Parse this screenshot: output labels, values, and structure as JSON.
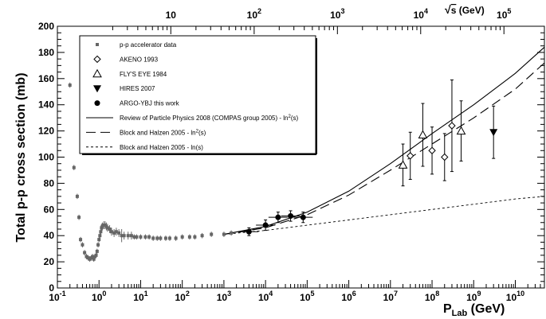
{
  "chart_data": {
    "type": "scatter",
    "x_scale": "log",
    "xlim": [
      0.1,
      50000000000
    ],
    "ylim": [
      0,
      200
    ],
    "xlabel": {
      "main": "P",
      "sub": "Lab",
      "unit": " (GeV)"
    },
    "ylabel": "Total p-p cross section (mb)",
    "top_axis_label": {
      "root": "√",
      "main": "s",
      "unit": " (GeV)"
    },
    "y_ticks": [
      "0",
      "20",
      "40",
      "60",
      "80",
      "100",
      "120",
      "140",
      "160",
      "180",
      "200"
    ],
    "x_tick_exponents": [
      "-1",
      "0",
      "1",
      "2",
      "3",
      "4",
      "5",
      "6",
      "7",
      "8",
      "9",
      "10"
    ],
    "top_ticks": [
      {
        "label": "10",
        "exp": "",
        "p_lab": 53
      },
      {
        "label": "10",
        "exp": "2",
        "p_lab": 5330
      },
      {
        "label": "10",
        "exp": "3",
        "p_lab": 533000
      },
      {
        "label": "10",
        "exp": "4",
        "p_lab": 53300000
      },
      {
        "label": "10",
        "exp": "5",
        "p_lab": 5330000000
      }
    ],
    "legend": [
      {
        "label": "p-p accelerator data",
        "marker": "square"
      },
      {
        "label": "AKENO 1993",
        "marker": "open-diamond"
      },
      {
        "label": "FLY'S EYE 1984",
        "marker": "open-triangle"
      },
      {
        "label": "HIRES 2007",
        "marker": "triangle-down"
      },
      {
        "label": "ARGO-YBJ this work",
        "marker": "circle"
      },
      {
        "label": "Review of Particle Physics 2008 (COMPAS group 2005) - ln",
        "label_exp": "2",
        "label_end": "(s)",
        "line": "solid"
      },
      {
        "label": "Block and Halzen 2005 - ln",
        "label_exp": "2",
        "label_end": "(s)",
        "line": "longdash"
      },
      {
        "label": "Block and Halzen 2005 - ln(s)",
        "line": "dashed"
      }
    ],
    "series": [
      {
        "name": "p-p accelerator data",
        "x": [
          0.2,
          0.25,
          0.3,
          0.33,
          0.36,
          0.4,
          0.45,
          0.5,
          0.55,
          0.6,
          0.65,
          0.7,
          0.75,
          0.8,
          0.85,
          0.9,
          0.95,
          1.0,
          1.05,
          1.1,
          1.15,
          1.2,
          1.3,
          1.4,
          1.5,
          1.6,
          1.8,
          2.0,
          2.3,
          2.6,
          3,
          3.5,
          4,
          5,
          6,
          7,
          8,
          10,
          13,
          16,
          20,
          25,
          30,
          40,
          50,
          70,
          100,
          150,
          200,
          300,
          500,
          1000,
          1500
        ],
        "y": [
          155,
          92,
          70,
          54,
          37,
          33,
          27,
          24,
          23,
          22,
          23,
          24,
          22,
          24,
          25,
          28,
          33,
          37,
          40,
          43,
          46,
          47,
          48,
          48,
          47,
          46,
          45,
          43,
          42,
          43,
          42,
          40,
          40,
          40,
          40,
          39,
          39,
          39,
          39,
          39,
          38,
          38,
          38,
          38,
          38,
          38,
          39,
          39,
          39,
          40,
          41,
          41,
          42
        ],
        "yerr": [
          2,
          2,
          2,
          2,
          2,
          2,
          2,
          2,
          2,
          2,
          2,
          2,
          2,
          2,
          2,
          2,
          2,
          2,
          2,
          3,
          3,
          3,
          3,
          3,
          3,
          3,
          3,
          3,
          3,
          3,
          3,
          5,
          3,
          3,
          3,
          2,
          2,
          2,
          2,
          2,
          2,
          2,
          2,
          2,
          2,
          2,
          2,
          2,
          2,
          2,
          2,
          2,
          2
        ]
      },
      {
        "name": "AKENO 1993",
        "x": [
          30000000,
          100000000,
          200000000,
          300000000
        ],
        "y": [
          101,
          105,
          100,
          124
        ],
        "yerr": [
          18,
          18,
          18,
          35
        ]
      },
      {
        "name": "FLY'S EYE 1984",
        "x": [
          20000000,
          60000000,
          500000000
        ],
        "y": [
          94,
          117,
          120
        ],
        "yerr": [
          16,
          24,
          23
        ]
      },
      {
        "name": "HIRES 2007",
        "x": [
          3000000000
        ],
        "y": [
          119
        ],
        "yerr": [
          20
        ]
      },
      {
        "name": "ARGO-YBJ this work",
        "x": [
          4000,
          10000,
          20000,
          40000,
          80000
        ],
        "y": [
          43,
          48,
          54,
          55,
          54
        ],
        "yerr": [
          3,
          4,
          4,
          4,
          4
        ]
      },
      {
        "name": "Review of Particle Physics 2008 (COMPAS group 2005) - ln²(s)",
        "x": [
          1000,
          10000,
          100000,
          1000000,
          10000000,
          100000000,
          1000000000,
          10000000000,
          50000000000
        ],
        "y": [
          41,
          47,
          58,
          74,
          95,
          118,
          140,
          164,
          184
        ]
      },
      {
        "name": "Block and Halzen 2005 - ln²(s)",
        "x": [
          1000,
          10000,
          100000,
          1000000,
          10000000,
          100000000,
          1000000000,
          10000000000,
          50000000000
        ],
        "y": [
          41,
          46,
          56,
          71,
          90,
          110,
          130,
          152,
          172
        ]
      },
      {
        "name": "Block and Halzen 2005 - ln(s)",
        "x": [
          1000,
          10000,
          100000,
          1000000,
          10000000,
          100000000,
          1000000000,
          10000000000,
          50000000000
        ],
        "y": [
          41,
          44,
          48,
          52,
          56,
          60,
          64,
          68,
          70
        ]
      }
    ]
  }
}
